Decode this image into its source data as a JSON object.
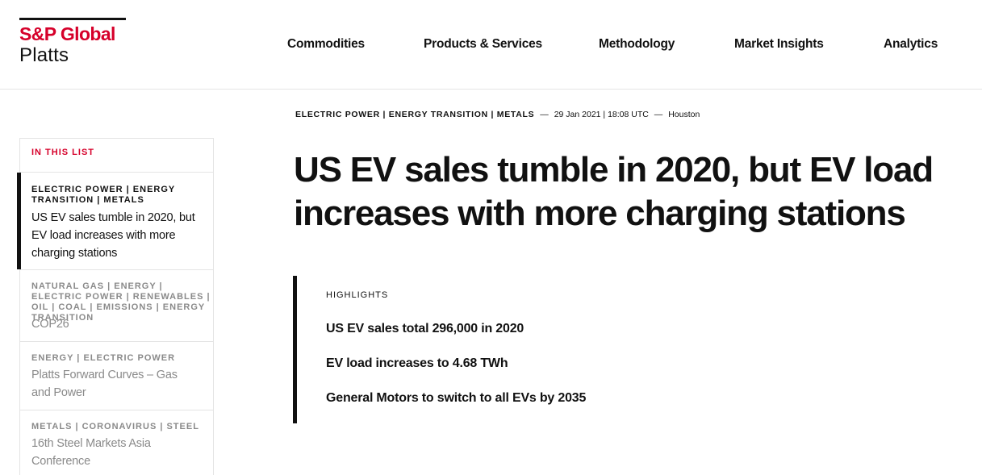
{
  "brand": {
    "line1": "S&P Global",
    "line2": "Platts",
    "accent_color": "#d6002a"
  },
  "nav": {
    "items": [
      "Commodities",
      "Products & Services",
      "Methodology",
      "Market Insights",
      "Analytics"
    ]
  },
  "sidebar": {
    "title": "IN THIS LIST",
    "items": [
      {
        "category": "ELECTRIC POWER | ENERGY TRANSITION | METALS",
        "headline": "US EV sales tumble in 2020, but EV load increases with more charging stations",
        "active": true
      },
      {
        "category": "NATURAL GAS | ENERGY | ELECTRIC POWER | RENEWABLES | OIL | COAL | EMISSIONS | ENERGY TRANSITION",
        "headline": "COP26",
        "active": false
      },
      {
        "category": "ENERGY | ELECTRIC POWER",
        "headline": "Platts Forward Curves – Gas and Power",
        "active": false
      },
      {
        "category": "METALS | CORONAVIRUS | STEEL",
        "headline": "16th Steel Markets Asia Conference",
        "active": false
      }
    ]
  },
  "article": {
    "categories": "ELECTRIC POWER | ENERGY TRANSITION | METALS",
    "date": "29 Jan 2021 | 18:08 UTC",
    "location": "Houston",
    "title": "US EV sales tumble in 2020, but EV load increases with more charging stations",
    "highlights_label": "HIGHLIGHTS",
    "highlights": [
      "US EV sales total 296,000 in 2020",
      "EV load increases to 4.68 TWh",
      "General Motors to switch to all EVs by 2035"
    ]
  }
}
